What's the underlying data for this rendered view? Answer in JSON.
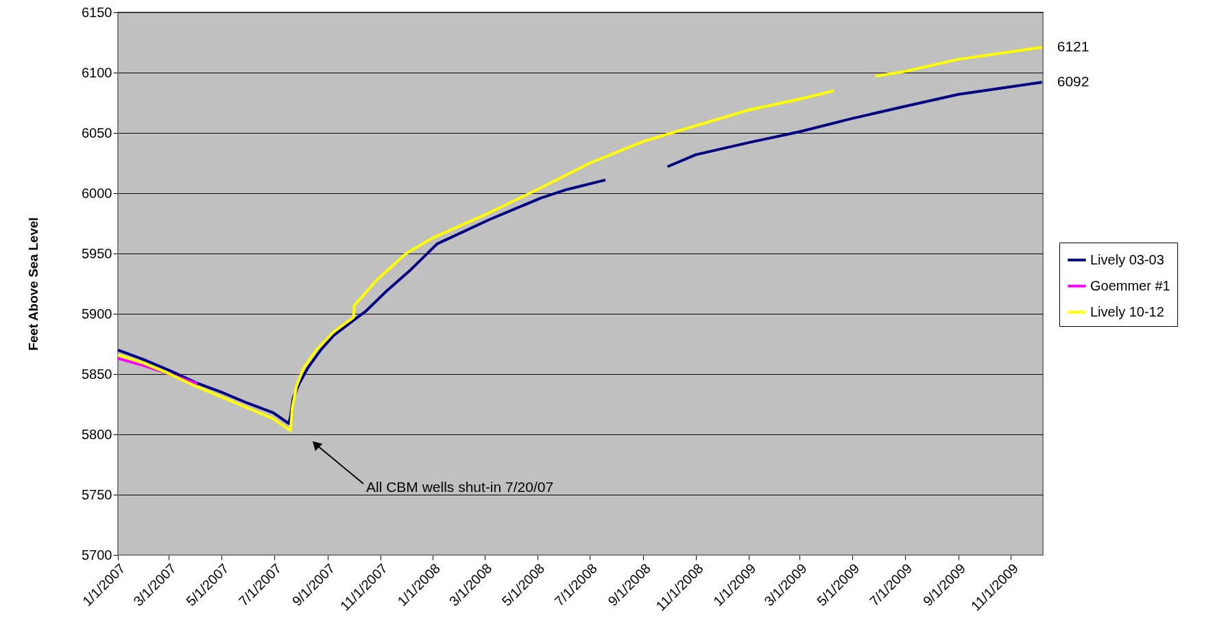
{
  "chart_data": {
    "type": "line",
    "ylabel": "Feet Above Sea Level",
    "xlim": [
      "2007-01-01",
      "2009-12-08"
    ],
    "xticks": [
      {
        "value": "2007-01-01",
        "label": "1/1/2007"
      },
      {
        "value": "2007-03-01",
        "label": "3/1/2007"
      },
      {
        "value": "2007-05-01",
        "label": "5/1/2007"
      },
      {
        "value": "2007-07-01",
        "label": "7/1/2007"
      },
      {
        "value": "2007-09-01",
        "label": "9/1/2007"
      },
      {
        "value": "2007-11-01",
        "label": "11/1/2007"
      },
      {
        "value": "2008-01-01",
        "label": "1/1/2008"
      },
      {
        "value": "2008-03-01",
        "label": "3/1/2008"
      },
      {
        "value": "2008-05-01",
        "label": "5/1/2008"
      },
      {
        "value": "2008-07-01",
        "label": "7/1/2008"
      },
      {
        "value": "2008-09-01",
        "label": "9/1/2008"
      },
      {
        "value": "2008-11-01",
        "label": "11/1/2008"
      },
      {
        "value": "2009-01-01",
        "label": "1/1/2009"
      },
      {
        "value": "2009-03-01",
        "label": "3/1/2009"
      },
      {
        "value": "2009-05-01",
        "label": "5/1/2009"
      },
      {
        "value": "2009-07-01",
        "label": "7/1/2009"
      },
      {
        "value": "2009-09-01",
        "label": "9/1/2009"
      },
      {
        "value": "2009-11-01",
        "label": "11/1/2009"
      }
    ],
    "ylim": [
      5700,
      6150
    ],
    "yticks": [
      5700,
      5750,
      5800,
      5850,
      5900,
      5950,
      6000,
      6050,
      6100,
      6150
    ],
    "grid": "y",
    "legend": "right",
    "marker": "none",
    "line_style": "solid",
    "series": [
      {
        "name": "Lively 03-03",
        "color": "#000080",
        "x": [
          "2007-01-01",
          "2007-01-31",
          "2007-03-02",
          "2007-04-01",
          "2007-05-01",
          "2007-05-31",
          "2007-06-30",
          "2007-07-18",
          "2007-07-20",
          "2007-07-23",
          "2007-07-30",
          "2007-08-09",
          "2007-08-24",
          "2007-09-08",
          "2007-09-28",
          "2007-10-15",
          "2007-11-07",
          "2007-12-07",
          "2008-01-06",
          "2008-02-05",
          "2008-03-06",
          "2008-04-05",
          "2008-05-05",
          "2008-06-04",
          "2008-07-19",
          "2008-08-20",
          "2008-09-29",
          "2008-11-01",
          "2009-01-01",
          "2009-03-01",
          "2009-05-01",
          "2009-07-01",
          "2009-09-01",
          "2009-12-07"
        ],
        "values": [
          5870,
          5862,
          5853,
          5843,
          5835,
          5826,
          5818,
          5809,
          5815,
          5830,
          5842,
          5855,
          5870,
          5882,
          5893,
          5902,
          5918,
          5937,
          5958,
          5968,
          5978,
          5987,
          5996,
          6003,
          6011,
          null,
          6022,
          6032,
          6042,
          6051,
          6062,
          6072,
          6082,
          6092
        ]
      },
      {
        "name": "Goemmer #1",
        "color": "#ff00ff",
        "x": [
          "2007-01-01",
          "2007-01-31",
          "2007-03-02",
          "2007-04-03"
        ],
        "values": [
          5863,
          5857,
          5850,
          5842
        ]
      },
      {
        "name": "Lively 10-12",
        "color": "#ffff00",
        "x": [
          "2007-01-01",
          "2007-01-31",
          "2007-03-02",
          "2007-04-01",
          "2007-05-01",
          "2007-05-31",
          "2007-06-30",
          "2007-07-20",
          "2007-07-22",
          "2007-07-27",
          "2007-08-04",
          "2007-08-19",
          "2007-09-08",
          "2007-10-01",
          "2007-10-02",
          "2007-10-28",
          "2007-12-01",
          "2008-01-01",
          "2008-03-01",
          "2008-05-01",
          "2008-07-01",
          "2008-09-01",
          "2008-11-01",
          "2009-01-01",
          "2009-03-01",
          "2009-04-10",
          "2009-05-10",
          "2009-05-28",
          "2009-07-01",
          "2009-09-01",
          "2009-12-07"
        ],
        "values": [
          5866,
          5859,
          5850,
          5840,
          5831,
          5822,
          5813,
          5803,
          5822,
          5840,
          5855,
          5870,
          5885,
          5897,
          5907,
          5928,
          5950,
          5963,
          5982,
          6003,
          6025,
          6043,
          6056,
          6069,
          6078,
          6085,
          null,
          6097,
          6101,
          6111,
          6121
        ]
      }
    ],
    "annotations": [
      {
        "text": "6121",
        "x": "2009-12-07",
        "y": 6121
      },
      {
        "text": "6092",
        "x": "2009-12-07",
        "y": 6092
      },
      "All CBM wells shut-in 7/20/07"
    ]
  }
}
